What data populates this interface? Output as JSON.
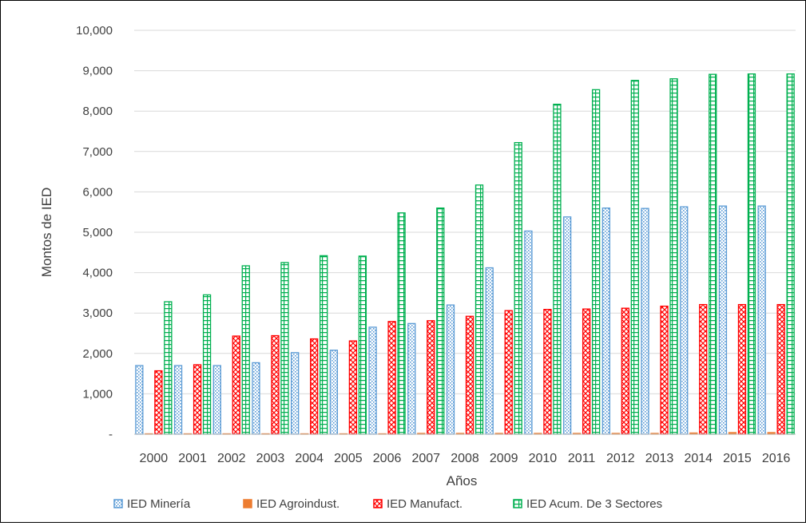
{
  "chart_data": {
    "type": "bar",
    "title": "",
    "xlabel": "Años",
    "ylabel": "Montos de IED",
    "ylim": [
      0,
      10000
    ],
    "y_ticks": [
      {
        "value": 0,
        "label": "-"
      },
      {
        "value": 1000,
        "label": "1,000"
      },
      {
        "value": 2000,
        "label": "2,000"
      },
      {
        "value": 3000,
        "label": "3,000"
      },
      {
        "value": 4000,
        "label": "4,000"
      },
      {
        "value": 5000,
        "label": "5,000"
      },
      {
        "value": 6000,
        "label": "6,000"
      },
      {
        "value": 7000,
        "label": "7,000"
      },
      {
        "value": 8000,
        "label": "8,000"
      },
      {
        "value": 9000,
        "label": "9,000"
      },
      {
        "value": 10000,
        "label": "10,000"
      }
    ],
    "grid": true,
    "legend_position": "bottom",
    "categories": [
      "2000",
      "2001",
      "2002",
      "2003",
      "2004",
      "2005",
      "2006",
      "2007",
      "2008",
      "2009",
      "2010",
      "2011",
      "2012",
      "2013",
      "2014",
      "2015",
      "2016"
    ],
    "series": [
      {
        "name": "IED Minería",
        "color": "#5B9BD5",
        "pattern": "dotted",
        "values": [
          1700,
          1700,
          1700,
          1770,
          2020,
          2080,
          2650,
          2740,
          3200,
          4120,
          5030,
          5380,
          5600,
          5590,
          5630,
          5650,
          5650
        ]
      },
      {
        "name": "IED Agroindust.",
        "color": "#ED7D31",
        "pattern": "solid",
        "values": [
          10,
          10,
          10,
          10,
          10,
          10,
          10,
          20,
          20,
          20,
          20,
          20,
          20,
          20,
          30,
          40,
          40
        ]
      },
      {
        "name": "IED Manufact.",
        "color": "#FF0000",
        "pattern": "zigzag",
        "values": [
          1570,
          1720,
          2430,
          2440,
          2360,
          2310,
          2790,
          2810,
          2920,
          3060,
          3090,
          3100,
          3120,
          3170,
          3210,
          3210,
          3210
        ]
      },
      {
        "name": "IED Acum. De 3 Sectores",
        "color": "#00B050",
        "pattern": "grid",
        "values": [
          3280,
          3450,
          4170,
          4250,
          4420,
          4410,
          5480,
          5600,
          6170,
          7220,
          8170,
          8530,
          8760,
          8800,
          8910,
          8920,
          8920
        ]
      }
    ]
  }
}
